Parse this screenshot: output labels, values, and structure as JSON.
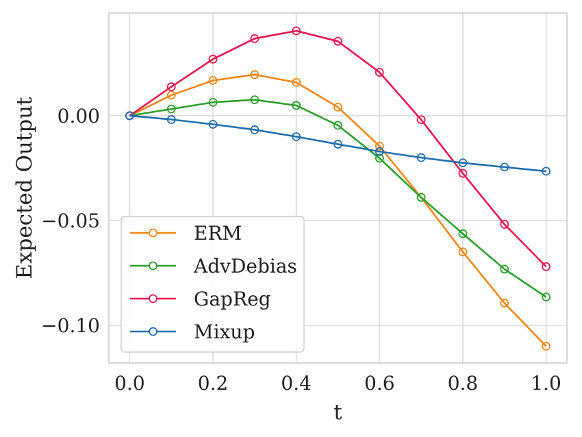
{
  "chart_data": {
    "type": "line",
    "title": "",
    "xlabel": "t",
    "ylabel": "Expected Output",
    "xlim": [
      -0.05,
      1.05
    ],
    "ylim": [
      -0.118,
      0.049
    ],
    "xticks": [
      0.0,
      0.2,
      0.4,
      0.6,
      0.8,
      1.0
    ],
    "xtick_labels": [
      "0.0",
      "0.2",
      "0.4",
      "0.6",
      "0.8",
      "1.0"
    ],
    "yticks": [
      0.0,
      -0.05,
      -0.1
    ],
    "ytick_labels": [
      "0.00",
      "−0.05",
      "−0.10"
    ],
    "grid": true,
    "legend_position": "lower-left",
    "x": [
      0.0,
      0.1,
      0.2,
      0.3,
      0.4,
      0.5,
      0.6,
      0.7,
      0.8,
      0.9,
      1.0
    ],
    "series": [
      {
        "name": "ERM",
        "color": "#f28716",
        "marker": "open-circle",
        "values": [
          0.0,
          0.0098,
          0.0168,
          0.0196,
          0.0159,
          0.0041,
          -0.0145,
          -0.039,
          -0.065,
          -0.0894,
          -0.11
        ]
      },
      {
        "name": "AdvDebias",
        "color": "#2ca02c",
        "marker": "open-circle",
        "values": [
          0.0,
          0.0032,
          0.0064,
          0.0076,
          0.0049,
          -0.0046,
          -0.0203,
          -0.039,
          -0.0563,
          -0.0732,
          -0.0865
        ]
      },
      {
        "name": "GapReg",
        "color": "#e8174f",
        "marker": "open-circle",
        "values": [
          0.0,
          0.0138,
          0.027,
          0.0368,
          0.0405,
          0.0355,
          0.0207,
          -0.0019,
          -0.0275,
          -0.0518,
          -0.072
        ]
      },
      {
        "name": "Mixup",
        "color": "#1f6fb0",
        "marker": "open-circle",
        "values": [
          0.0,
          -0.0018,
          -0.0041,
          -0.0067,
          -0.01,
          -0.0136,
          -0.0171,
          -0.02,
          -0.0225,
          -0.0245,
          -0.0265
        ]
      }
    ]
  }
}
